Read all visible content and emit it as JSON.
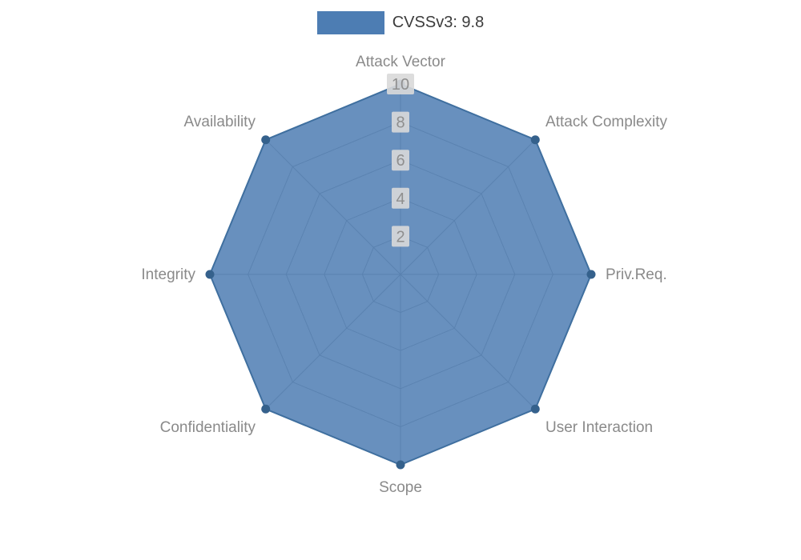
{
  "legend": {
    "label": "CVSSv3: 9.8"
  },
  "colors": {
    "series_fill": "#4d7db3",
    "series_edge": "#3f6f9f",
    "vertex_dot": "#35618c",
    "grid_line": "#999999",
    "tick_text": "#8f8f8f",
    "tick_bg": "#d9d9d9",
    "axis_label": "#8a8a8a",
    "legend_text": "#3c3c3c"
  },
  "chart_data": {
    "type": "radar",
    "title": "CVSSv3: 9.8",
    "categories": [
      "Attack Vector",
      "Attack Complexity",
      "Priv.Req.",
      "User Interaction",
      "Scope",
      "Confidentiality",
      "Integrity",
      "Availability"
    ],
    "series": [
      {
        "name": "CVSSv3: 9.8",
        "values": [
          10,
          10,
          10,
          10,
          10,
          10,
          10,
          10
        ]
      }
    ],
    "ticks": [
      2,
      4,
      6,
      8,
      10
    ],
    "rmin": 0,
    "rmax": 10,
    "grid": true,
    "legend_position": "top"
  }
}
